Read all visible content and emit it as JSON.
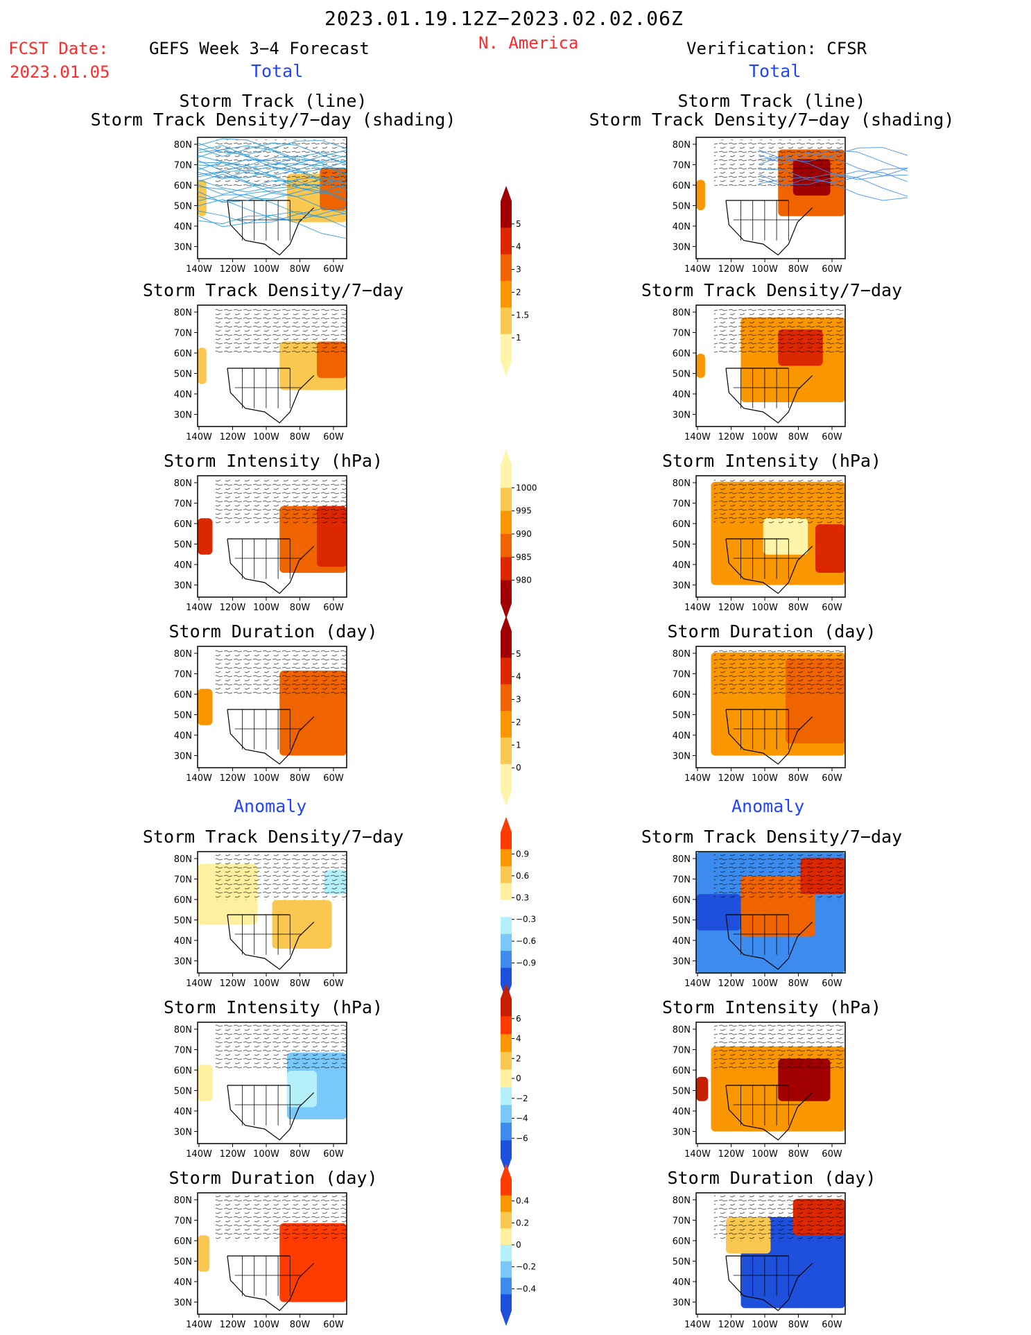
{
  "header": {
    "date_range": "2023.01.19.12Z−2023.02.02.06Z",
    "fcst_label": "FCST Date:",
    "fcst_date": "2023.01.05",
    "forecast_title": "GEFS Week 3−4 Forecast",
    "region": "N. America",
    "verification_title": "Verification: CFSR",
    "total_left": "Total",
    "total_right": "Total",
    "anomaly_left": "Anomaly",
    "anomaly_right": "Anomaly"
  },
  "panels": {
    "track_line": "Storm Track (line)",
    "track_shading": "Storm Track Density/7−day (shading)",
    "density": "Storm Track Density/7−day",
    "intensity": "Storm Intensity (hPa)",
    "duration": "Storm Duration (day)"
  },
  "axes": {
    "lat_labels": [
      "80N",
      "70N",
      "60N",
      "50N",
      "40N",
      "30N"
    ],
    "lon_labels": [
      "140W",
      "120W",
      "100W",
      "80W",
      "60W"
    ]
  },
  "colorbars": {
    "density_total": {
      "labels": [
        "5",
        "4",
        "3",
        "2",
        "1.5",
        "1"
      ],
      "colors": [
        "#a00000",
        "#dc2800",
        "#f06400",
        "#fa9600",
        "#fac850",
        "#fff5aa"
      ]
    },
    "intensity_total": {
      "labels": [
        "1000",
        "995",
        "990",
        "985",
        "980"
      ],
      "colors": [
        "#fff5aa",
        "#fac850",
        "#fa9600",
        "#f06400",
        "#dc2800",
        "#a00000"
      ]
    },
    "duration_total": {
      "labels": [
        "5",
        "4",
        "3",
        "2",
        "1",
        "0"
      ],
      "colors": [
        "#a00000",
        "#dc2800",
        "#f06400",
        "#fa9600",
        "#fac850",
        "#fff5aa"
      ]
    },
    "density_anom": {
      "labels": [
        "0.9",
        "0.6",
        "0.3",
        "−0.3",
        "−0.6",
        "−0.9"
      ],
      "colors": [
        "#ff3c00",
        "#fa9600",
        "#fac850",
        "#fff0a0",
        "#ffffff",
        "#b4f0fa",
        "#78c8fa",
        "#3c8cf0",
        "#1e50dc"
      ]
    },
    "intensity_anom": {
      "labels": [
        "6",
        "4",
        "2",
        "0",
        "−2",
        "−4",
        "−6"
      ],
      "colors": [
        "#c81e00",
        "#ff3c00",
        "#fa9600",
        "#fac850",
        "#fff0a0",
        "#b4f0fa",
        "#78c8fa",
        "#3c8cf0",
        "#1e50dc"
      ]
    },
    "duration_anom": {
      "labels": [
        "0.4",
        "0.2",
        "0",
        "−0.2",
        "−0.4"
      ],
      "colors": [
        "#ff3c00",
        "#fa9600",
        "#fac850",
        "#fff0a0",
        "#b4f0fa",
        "#78c8fa",
        "#3c8cf0",
        "#1e50dc"
      ]
    }
  }
}
